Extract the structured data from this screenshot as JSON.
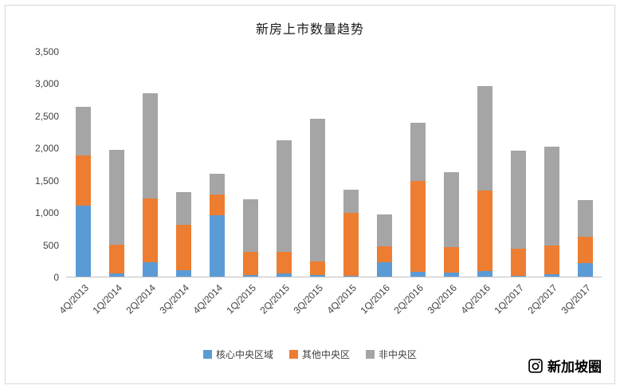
{
  "chart_data": {
    "type": "bar",
    "stacked": true,
    "title": "新房上市数量趋势",
    "categories": [
      "4Q/2013",
      "1Q/2014",
      "2Q/2014",
      "3Q/2014",
      "4Q/2014",
      "1Q/2015",
      "2Q/2015",
      "3Q/2015",
      "4Q/2015",
      "1Q/2016",
      "2Q/2016",
      "3Q/2016",
      "4Q/2016",
      "1Q/2017",
      "2Q/2017",
      "3Q/2017"
    ],
    "series": [
      {
        "name": "核心中央区域",
        "color": "#5B9BD5",
        "values": [
          1100,
          50,
          220,
          100,
          950,
          20,
          50,
          30,
          10,
          220,
          80,
          60,
          90,
          10,
          40,
          210
        ]
      },
      {
        "name": "其他中央区",
        "color": "#ED7D31",
        "values": [
          780,
          450,
          990,
          700,
          330,
          370,
          330,
          200,
          980,
          250,
          1400,
          400,
          1240,
          420,
          440,
          410
        ]
      },
      {
        "name": "非中央区",
        "color": "#A5A5A5",
        "values": [
          760,
          1470,
          1640,
          510,
          320,
          810,
          1730,
          2220,
          360,
          490,
          910,
          1160,
          1630,
          1530,
          1540,
          570
        ]
      }
    ],
    "ylim": [
      0,
      3500
    ],
    "y_ticks": [
      "3,500",
      "3,000",
      "2,500",
      "2,000",
      "1,500",
      "1,000",
      "500",
      "0"
    ],
    "grid": false,
    "legend_position": "bottom"
  },
  "watermark": {
    "label": "新加坡圈"
  }
}
